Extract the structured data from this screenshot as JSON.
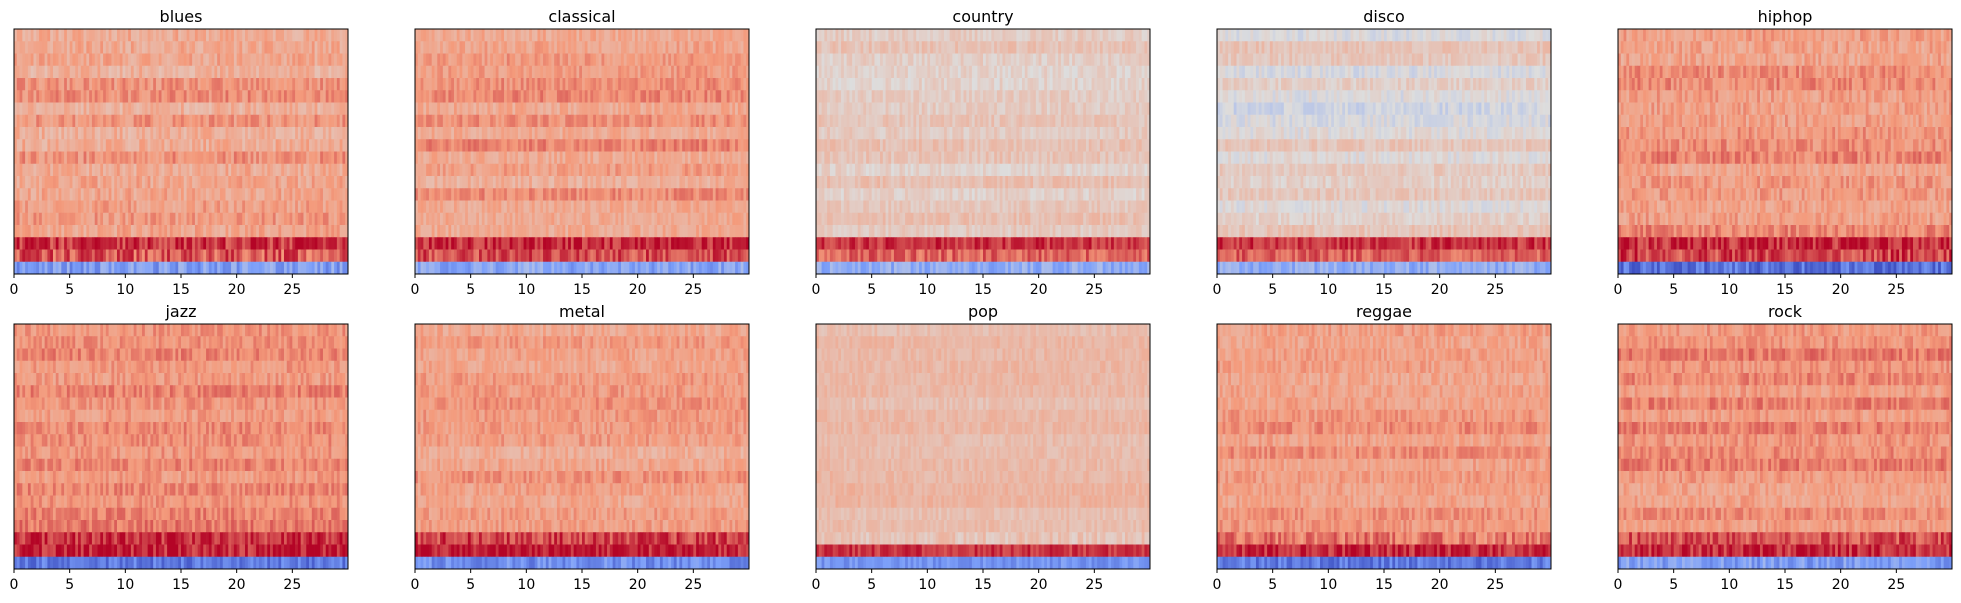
{
  "figure": {
    "panel_count": 10
  },
  "chart_data": [
    {
      "type": "heatmap",
      "title": "blues",
      "xticks": [
        0,
        5,
        10,
        15,
        20,
        25
      ],
      "xlim": [
        0,
        30
      ],
      "colormap": "coolwarm",
      "rows": 20,
      "cols": 120,
      "seed": 11,
      "base": 0.72,
      "row_jitter": 0.06,
      "texture": 0.07,
      "bottom_rows": [
        0.93,
        0.86,
        0.25
      ]
    },
    {
      "type": "heatmap",
      "title": "classical",
      "xticks": [
        0,
        5,
        10,
        15,
        20,
        25
      ],
      "xlim": [
        0,
        30
      ],
      "colormap": "coolwarm",
      "rows": 20,
      "cols": 120,
      "seed": 23,
      "base": 0.73,
      "row_jitter": 0.07,
      "texture": 0.06,
      "bottom_rows": [
        0.94,
        0.88,
        0.28
      ]
    },
    {
      "type": "heatmap",
      "title": "country",
      "xticks": [
        0,
        5,
        10,
        15,
        20,
        25
      ],
      "xlim": [
        0,
        30
      ],
      "colormap": "coolwarm",
      "rows": 20,
      "cols": 120,
      "seed": 37,
      "base": 0.59,
      "row_jitter": 0.05,
      "texture": 0.05,
      "bottom_rows": [
        0.92,
        0.84,
        0.3
      ]
    },
    {
      "type": "heatmap",
      "title": "disco",
      "xticks": [
        0,
        5,
        10,
        15,
        20,
        25
      ],
      "xlim": [
        0,
        30
      ],
      "colormap": "coolwarm",
      "rows": 20,
      "cols": 120,
      "seed": 41,
      "base": 0.53,
      "row_jitter": 0.07,
      "texture": 0.05,
      "bottom_rows": [
        0.92,
        0.85,
        0.3
      ]
    },
    {
      "type": "heatmap",
      "title": "hiphop",
      "xticks": [
        0,
        5,
        10,
        15,
        20,
        25
      ],
      "xlim": [
        0,
        30
      ],
      "colormap": "coolwarm",
      "rows": 20,
      "cols": 120,
      "seed": 53,
      "base": 0.75,
      "row_jitter": 0.05,
      "texture": 0.07,
      "bottom_rows": [
        0.95,
        0.9,
        0.12
      ]
    },
    {
      "type": "heatmap",
      "title": "jazz",
      "xticks": [
        0,
        5,
        10,
        15,
        20,
        25
      ],
      "xlim": [
        0,
        30
      ],
      "colormap": "coolwarm",
      "rows": 20,
      "cols": 120,
      "seed": 67,
      "base": 0.77,
      "row_jitter": 0.04,
      "texture": 0.06,
      "bottom_rows": [
        0.93,
        0.95,
        0.14
      ]
    },
    {
      "type": "heatmap",
      "title": "metal",
      "xticks": [
        0,
        5,
        10,
        15,
        20,
        25
      ],
      "xlim": [
        0,
        30
      ],
      "colormap": "coolwarm",
      "rows": 20,
      "cols": 120,
      "seed": 71,
      "base": 0.72,
      "row_jitter": 0.04,
      "texture": 0.06,
      "bottom_rows": [
        0.9,
        0.96,
        0.2
      ]
    },
    {
      "type": "heatmap",
      "title": "pop",
      "xticks": [
        0,
        5,
        10,
        15,
        20,
        25
      ],
      "xlim": [
        0,
        30
      ],
      "colormap": "coolwarm",
      "rows": 20,
      "cols": 120,
      "seed": 83,
      "base": 0.63,
      "row_jitter": 0.03,
      "texture": 0.04,
      "bottom_rows": [
        0.6,
        0.92,
        0.22
      ]
    },
    {
      "type": "heatmap",
      "title": "reggae",
      "xticks": [
        0,
        5,
        10,
        15,
        20,
        25
      ],
      "xlim": [
        0,
        30
      ],
      "colormap": "coolwarm",
      "rows": 20,
      "cols": 120,
      "seed": 97,
      "base": 0.74,
      "row_jitter": 0.04,
      "texture": 0.06,
      "bottom_rows": [
        0.8,
        0.95,
        0.14
      ]
    },
    {
      "type": "heatmap",
      "title": "rock",
      "xticks": [
        0,
        5,
        10,
        15,
        20,
        25
      ],
      "xlim": [
        0,
        30
      ],
      "colormap": "coolwarm",
      "rows": 20,
      "cols": 120,
      "seed": 101,
      "base": 0.76,
      "row_jitter": 0.05,
      "texture": 0.06,
      "bottom_rows": [
        0.88,
        0.94,
        0.25
      ]
    }
  ]
}
